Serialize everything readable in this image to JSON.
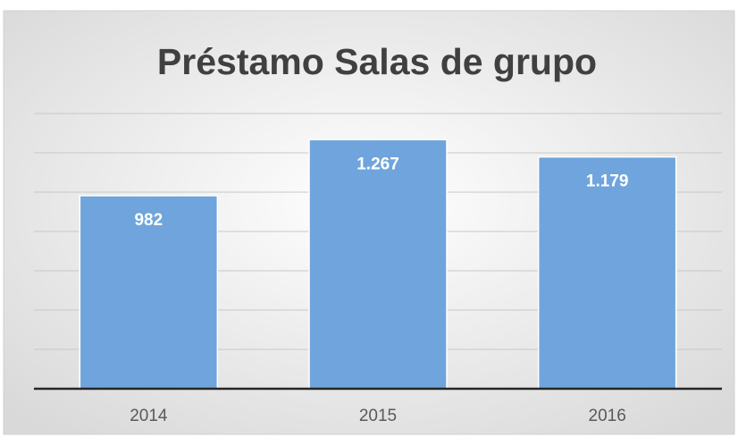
{
  "chart_data": {
    "type": "bar",
    "title": "Préstamo Salas de grupo",
    "categories": [
      "2014",
      "2015",
      "2016"
    ],
    "values": [
      982,
      1267,
      1179
    ],
    "value_labels": [
      "982",
      "1.267",
      "1.179"
    ],
    "color": "#6fa5dc",
    "ylim": [
      0,
      1400
    ],
    "yticks": [
      0,
      200,
      400,
      600,
      800,
      1000,
      1200,
      1400
    ],
    "grid": true
  }
}
